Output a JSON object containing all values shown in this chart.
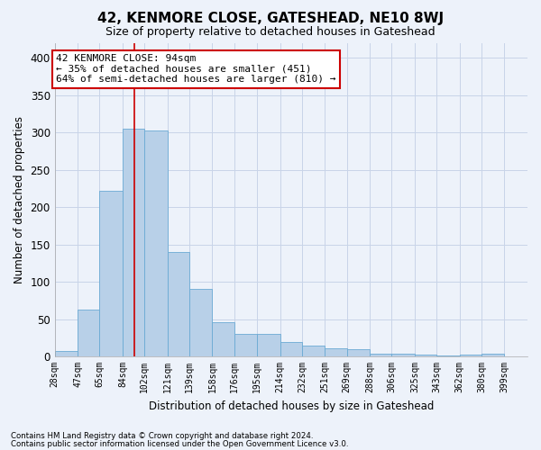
{
  "title": "42, KENMORE CLOSE, GATESHEAD, NE10 8WJ",
  "subtitle": "Size of property relative to detached houses in Gateshead",
  "xlabel": "Distribution of detached houses by size in Gateshead",
  "ylabel": "Number of detached properties",
  "bin_labels": [
    "28sqm",
    "47sqm",
    "65sqm",
    "84sqm",
    "102sqm",
    "121sqm",
    "139sqm",
    "158sqm",
    "176sqm",
    "195sqm",
    "214sqm",
    "232sqm",
    "251sqm",
    "269sqm",
    "288sqm",
    "306sqm",
    "325sqm",
    "343sqm",
    "362sqm",
    "380sqm",
    "399sqm"
  ],
  "bar_heights": [
    7,
    63,
    222,
    305,
    302,
    140,
    90,
    46,
    30,
    30,
    19,
    14,
    11,
    10,
    4,
    4,
    2,
    1,
    3,
    4
  ],
  "bar_color": "#b8d0e8",
  "bar_edge_color": "#6aaad4",
  "grid_color": "#c8d4e8",
  "bg_color": "#edf2fa",
  "property_size": 94,
  "bin_edges": [
    28,
    47,
    65,
    84,
    102,
    121,
    139,
    158,
    176,
    195,
    214,
    232,
    251,
    269,
    288,
    306,
    325,
    343,
    362,
    380,
    399
  ],
  "red_line_color": "#cc0000",
  "annotation_line1": "42 KENMORE CLOSE: 94sqm",
  "annotation_line2": "← 35% of detached houses are smaller (451)",
  "annotation_line3": "64% of semi-detached houses are larger (810) →",
  "annotation_box_color": "#ffffff",
  "annotation_box_edge": "#cc0000",
  "ylim": [
    0,
    420
  ],
  "yticks": [
    0,
    50,
    100,
    150,
    200,
    250,
    300,
    350,
    400
  ],
  "footnote1": "Contains HM Land Registry data © Crown copyright and database right 2024.",
  "footnote2": "Contains public sector information licensed under the Open Government Licence v3.0."
}
